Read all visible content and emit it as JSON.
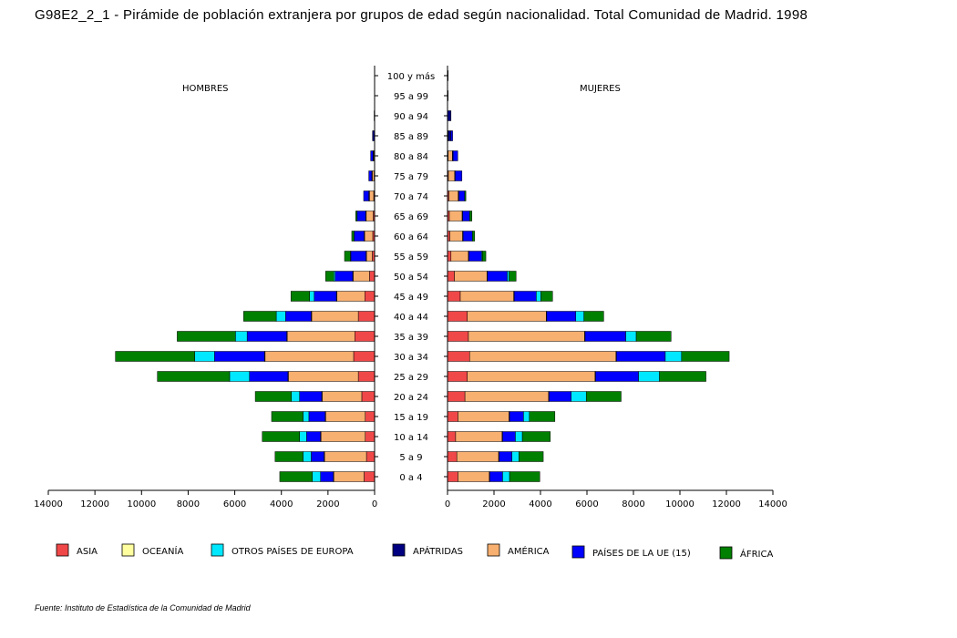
{
  "title": "G98E2_2_1 - Pirámide de población extranjera por grupos de edad según nacionalidad. Total Comunidad de Madrid.  1998",
  "source": "Fuente: Instituto de Estadística de la Comunidad de Madrid",
  "colors": {
    "ASIA": "#f04848",
    "OCEANÍA": "#ffffa0",
    "OTROS PAÍSES DE EUROPA": "#00e8ff",
    "APÁTRIDAS": "#000080",
    "AMÉRICA": "#f8b070",
    "PAÍSES DE LA UE (15)": "#0000ff",
    "ÁFRICA": "#008000"
  },
  "chart_data": {
    "type": "bar",
    "orientation": "horizontal",
    "layout": "population-pyramid",
    "stacked": true,
    "panels": [
      {
        "key": "hombres",
        "label": "HOMBRES",
        "side": "left"
      },
      {
        "key": "mujeres",
        "label": "MUJERES",
        "side": "right"
      }
    ],
    "xlim": [
      0,
      14000
    ],
    "xticks": [
      0,
      2000,
      4000,
      6000,
      8000,
      10000,
      12000,
      14000
    ],
    "categories": [
      "100 y más",
      "95 a 99",
      "90 a 94",
      "85 a 89",
      "80 a 84",
      "75 a 79",
      "70 a 74",
      "65 a 69",
      "60 a 64",
      "55 a 59",
      "50 a 54",
      "45 a 49",
      "40 a  44",
      "35 a 39",
      "30 a 34",
      "25 a 29",
      "20 a 24",
      "15 a 19",
      "10 a 14",
      "5 a 9",
      "0 a 4"
    ],
    "legend": [
      "ASIA",
      "OCEANÍA",
      "OTROS PAÍSES DE EUROPA",
      "APÁTRIDAS",
      "AMÉRICA",
      "PAÍSES DE LA UE (15)",
      "ÁFRICA"
    ],
    "stack_order": [
      "ASIA",
      "OCEANÍA",
      "AMÉRICA",
      "APÁTRIDAS",
      "PAÍSES DE LA UE (15)",
      "OTROS PAÍSES DE EUROPA",
      "ÁFRICA"
    ],
    "series": [
      {
        "name": "ASIA",
        "hombres": [
          0,
          0,
          0,
          0,
          10,
          20,
          40,
          60,
          80,
          100,
          220,
          420,
          700,
          850,
          900,
          700,
          550,
          400,
          400,
          350,
          450
        ],
        "mujeres": [
          0,
          0,
          0,
          0,
          30,
          40,
          60,
          80,
          100,
          150,
          300,
          550,
          850,
          900,
          950,
          850,
          750,
          450,
          350,
          400,
          450
        ]
      },
      {
        "name": "OCEANÍA",
        "hombres": [
          0,
          0,
          0,
          0,
          0,
          0,
          0,
          0,
          0,
          0,
          0,
          0,
          0,
          0,
          0,
          0,
          0,
          0,
          0,
          0,
          0
        ],
        "mujeres": [
          0,
          0,
          0,
          0,
          0,
          0,
          0,
          0,
          0,
          0,
          0,
          0,
          0,
          0,
          0,
          0,
          0,
          0,
          0,
          0,
          0
        ]
      },
      {
        "name": "AMÉRICA",
        "hombres": [
          0,
          0,
          0,
          0,
          30,
          80,
          180,
          300,
          350,
          250,
          700,
          1200,
          2000,
          2900,
          3800,
          3000,
          1700,
          1700,
          1900,
          1800,
          1300
        ],
        "mujeres": [
          0,
          0,
          0,
          30,
          180,
          270,
          400,
          550,
          550,
          750,
          1400,
          2300,
          3400,
          5000,
          6300,
          5500,
          3600,
          2200,
          2000,
          1800,
          1350
        ]
      },
      {
        "name": "APÁTRIDAS",
        "hombres": [
          10,
          10,
          20,
          50,
          30,
          20,
          30,
          20,
          20,
          20,
          20,
          20,
          20,
          20,
          20,
          20,
          20,
          20,
          20,
          20,
          20
        ],
        "mujeres": [
          30,
          30,
          150,
          120,
          30,
          20,
          30,
          20,
          20,
          20,
          20,
          20,
          20,
          20,
          20,
          20,
          20,
          20,
          20,
          20,
          20
        ]
      },
      {
        "name": "PAÍSES DE LA UE (15)",
        "hombres": [
          0,
          0,
          0,
          40,
          100,
          130,
          220,
          370,
          430,
          650,
          750,
          950,
          1100,
          1700,
          2150,
          1650,
          950,
          700,
          600,
          550,
          550
        ],
        "mujeres": [
          0,
          0,
          0,
          70,
          200,
          290,
          250,
          300,
          400,
          550,
          850,
          950,
          1250,
          1750,
          2100,
          1850,
          950,
          600,
          550,
          550,
          550
        ]
      },
      {
        "name": "OTROS PAÍSES DE EUROPA",
        "hombres": [
          0,
          0,
          0,
          0,
          0,
          0,
          0,
          0,
          0,
          20,
          60,
          200,
          400,
          500,
          850,
          850,
          350,
          250,
          300,
          350,
          350
        ],
        "mujeres": [
          0,
          0,
          0,
          0,
          0,
          0,
          0,
          0,
          0,
          30,
          80,
          200,
          350,
          450,
          700,
          900,
          650,
          250,
          300,
          300,
          300
        ]
      },
      {
        "name": "ÁFRICA",
        "hombres": [
          0,
          0,
          0,
          0,
          0,
          0,
          0,
          60,
          100,
          250,
          350,
          800,
          1400,
          2500,
          3400,
          3100,
          1550,
          1350,
          1600,
          1200,
          1400
        ],
        "mujeres": [
          0,
          0,
          0,
          0,
          0,
          0,
          50,
          100,
          100,
          150,
          300,
          500,
          850,
          1500,
          2050,
          2000,
          1500,
          1100,
          1200,
          1050,
          1300
        ]
      }
    ]
  }
}
